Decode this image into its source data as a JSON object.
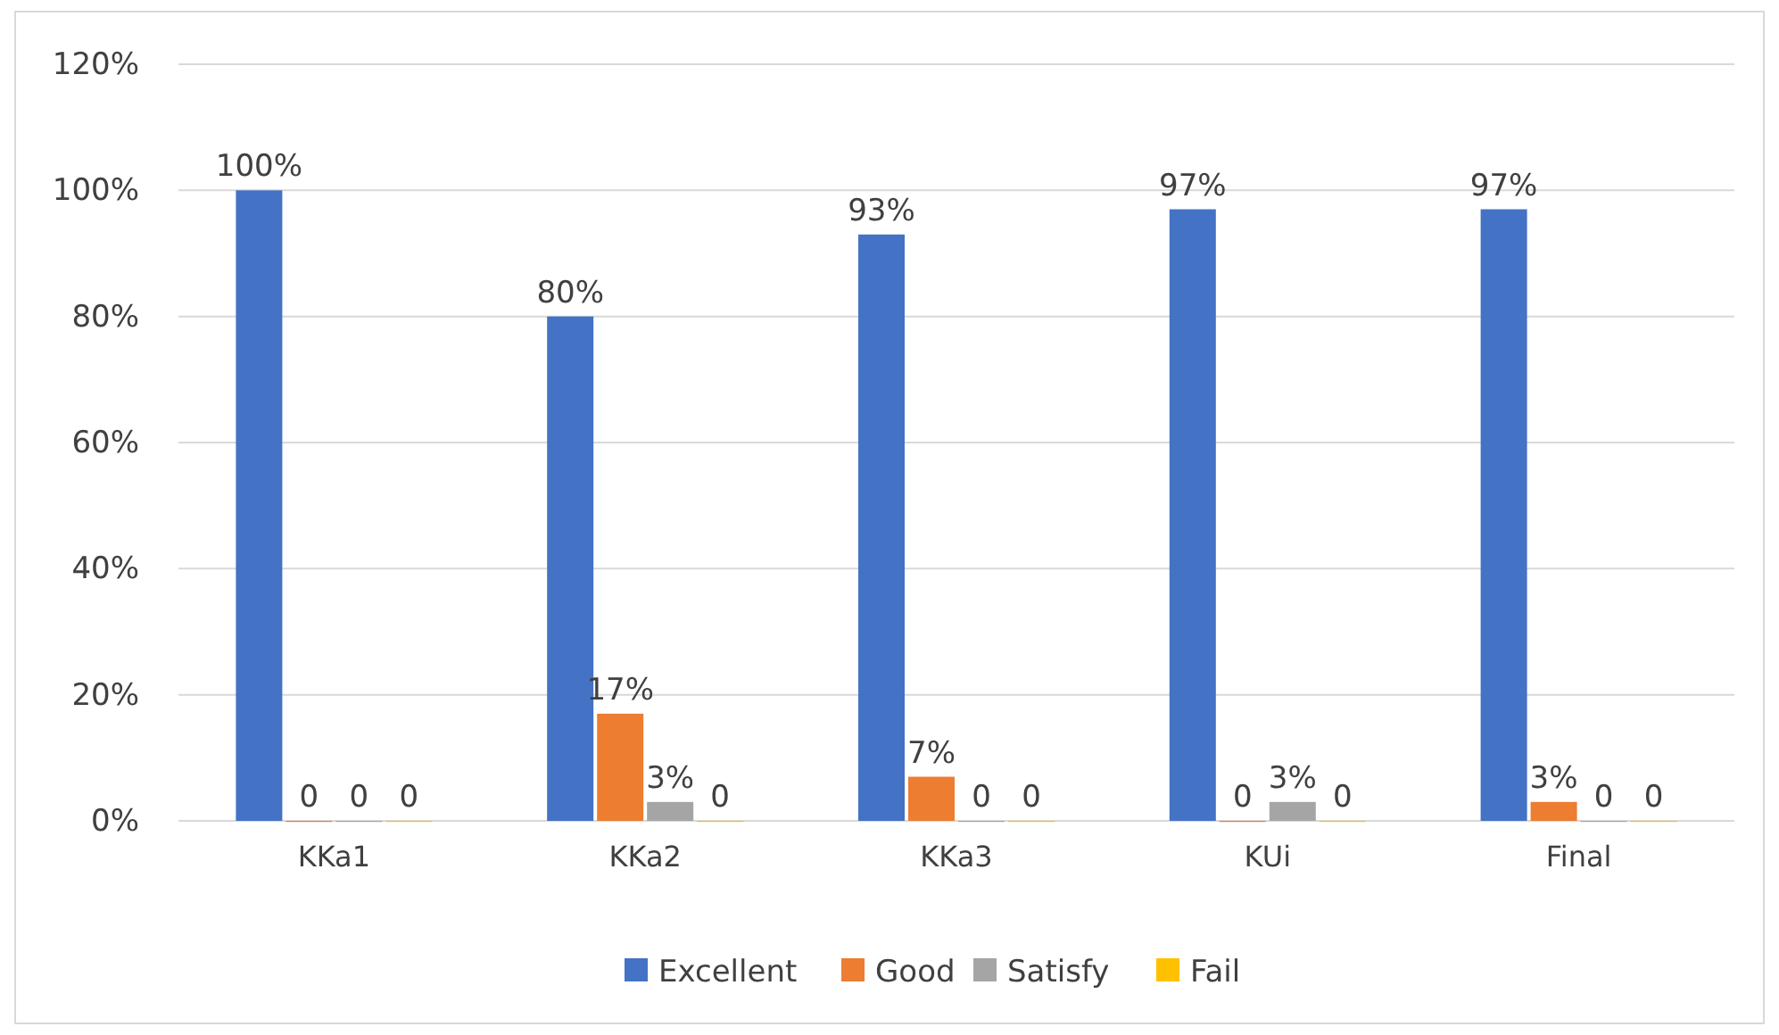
{
  "chart_data": {
    "type": "bar",
    "categories": [
      "KKa1",
      "KKa2",
      "KKa3",
      "KUi",
      "Final"
    ],
    "series": [
      {
        "name": "Excellent",
        "color": "#4472c4",
        "values": [
          100,
          80,
          93,
          97,
          97
        ],
        "value_labels": [
          "100%",
          "80%",
          "93%",
          "97%",
          "97%"
        ]
      },
      {
        "name": "Good",
        "color": "#ed7d31",
        "values": [
          0,
          17,
          7,
          0,
          3
        ],
        "value_labels": [
          "0",
          "17%",
          "7%",
          "0",
          "3%"
        ]
      },
      {
        "name": "Satisfy",
        "color": "#a5a5a5",
        "values": [
          0,
          3,
          0,
          3,
          0
        ],
        "value_labels": [
          "0",
          "3%",
          "0",
          "3%",
          "0"
        ]
      },
      {
        "name": "Fail",
        "color": "#ffc000",
        "values": [
          0,
          0,
          0,
          0,
          0
        ],
        "value_labels": [
          "0",
          "0",
          "0",
          "0",
          "0"
        ]
      }
    ],
    "ylim": [
      0,
      120
    ],
    "yticks": [
      {
        "value": 0,
        "label": "0%"
      },
      {
        "value": 20,
        "label": "20%"
      },
      {
        "value": 40,
        "label": "40%"
      },
      {
        "value": 60,
        "label": "60%"
      },
      {
        "value": 80,
        "label": "80%"
      },
      {
        "value": 100,
        "label": "100%"
      },
      {
        "value": 120,
        "label": "120%"
      }
    ],
    "grid": "y",
    "legend": "bottom"
  }
}
